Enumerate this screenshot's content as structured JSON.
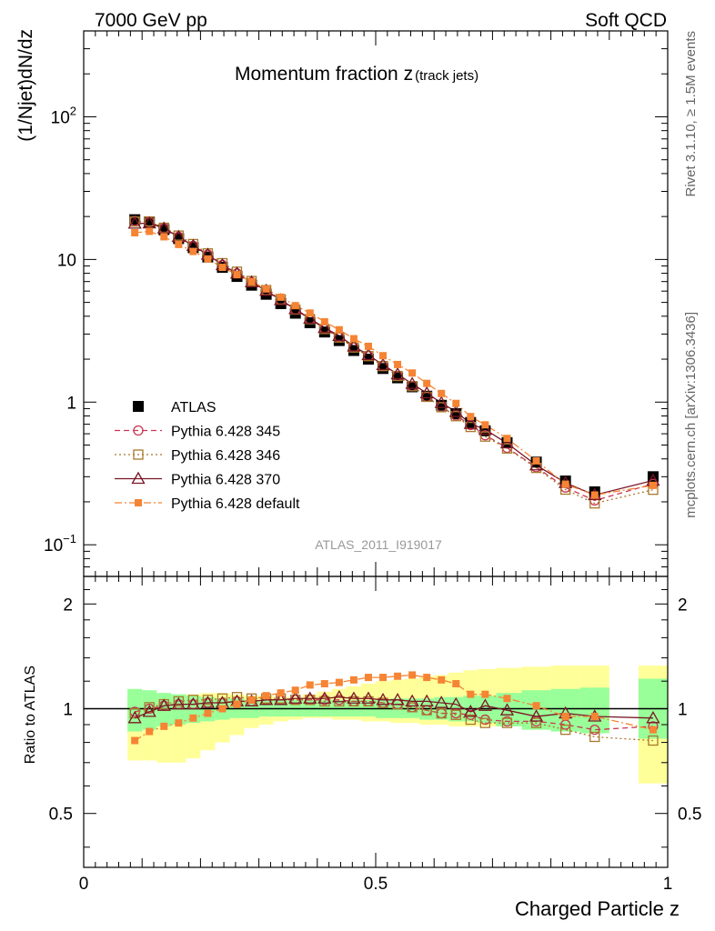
{
  "header": {
    "left": "7000 GeV pp",
    "right": "Soft QCD"
  },
  "side_labels": {
    "rivet": "Rivet 3.1.10, ≥ 1.5M events",
    "mcplots": "mcplots.cern.ch [arXiv:1306.3436]"
  },
  "chart_data": {
    "type": "line",
    "title": "Momentum fraction z",
    "title_sub": "(track jets)",
    "watermark": "ATLAS_2011_I919017",
    "xlabel": "Charged Particle z",
    "ylabel": "(1/Njet)dN/dz",
    "ratio_ylabel": "Ratio to ATLAS",
    "xlim": [
      0,
      1
    ],
    "ylim": [
      0.06,
      400
    ],
    "ratio_ylim": [
      0.35,
      2.4
    ],
    "yscale": "log",
    "x_ticks": [
      "0",
      "0.5",
      "1"
    ],
    "y_ticks_main": [
      {
        "mant": "10",
        "exp": "2"
      },
      {
        "mant": "10",
        "exp": ""
      },
      {
        "mant": "1",
        "exp": ""
      },
      {
        "mant": "10",
        "exp": "−1"
      }
    ],
    "ratio_ticks": [
      "2",
      "1",
      "0.5"
    ],
    "x": [
      0.0875,
      0.1125,
      0.1375,
      0.1625,
      0.1875,
      0.2125,
      0.2375,
      0.2625,
      0.2875,
      0.3125,
      0.3375,
      0.3625,
      0.3875,
      0.4125,
      0.4375,
      0.4625,
      0.4875,
      0.5125,
      0.5375,
      0.5625,
      0.5875,
      0.6125,
      0.6375,
      0.6625,
      0.6875,
      0.725,
      0.775,
      0.825,
      0.875,
      0.975
    ],
    "data": {
      "name": "ATLAS",
      "values": [
        19.0,
        18.3,
        16.2,
        14.0,
        12.1,
        10.4,
        8.8,
        7.6,
        6.6,
        5.7,
        4.9,
        4.2,
        3.6,
        3.1,
        2.7,
        2.3,
        2.0,
        1.72,
        1.48,
        1.28,
        1.1,
        0.95,
        0.83,
        0.72,
        0.63,
        0.52,
        0.38,
        0.28,
        0.235,
        0.3
      ],
      "band_inner": [
        [
          0.86,
          1.14
        ],
        [
          0.87,
          1.13
        ],
        [
          0.89,
          1.11
        ],
        [
          0.9,
          1.1
        ],
        [
          0.91,
          1.09
        ],
        [
          0.92,
          1.08
        ],
        [
          0.93,
          1.07
        ],
        [
          0.94,
          1.07
        ],
        [
          0.94,
          1.06
        ],
        [
          0.95,
          1.06
        ],
        [
          0.95,
          1.06
        ],
        [
          0.95,
          1.06
        ],
        [
          0.95,
          1.06
        ],
        [
          0.95,
          1.06
        ],
        [
          0.95,
          1.06
        ],
        [
          0.95,
          1.06
        ],
        [
          0.95,
          1.06
        ],
        [
          0.94,
          1.06
        ],
        [
          0.94,
          1.07
        ],
        [
          0.94,
          1.07
        ],
        [
          0.93,
          1.07
        ],
        [
          0.93,
          1.08
        ],
        [
          0.92,
          1.08
        ],
        [
          0.92,
          1.09
        ],
        [
          0.91,
          1.09
        ],
        [
          0.89,
          1.11
        ],
        [
          0.87,
          1.13
        ],
        [
          0.86,
          1.14
        ],
        [
          0.85,
          1.15
        ],
        [
          0.82,
          1.22
        ]
      ],
      "band_outer": [
        [
          0.71,
          1.07
        ],
        [
          0.71,
          1.08
        ],
        [
          0.7,
          1.08
        ],
        [
          0.7,
          1.09
        ],
        [
          0.72,
          1.1
        ],
        [
          0.76,
          1.11
        ],
        [
          0.8,
          1.11
        ],
        [
          0.84,
          1.1
        ],
        [
          0.88,
          1.09
        ],
        [
          0.9,
          1.09
        ],
        [
          0.92,
          1.08
        ],
        [
          0.93,
          1.08
        ],
        [
          0.94,
          1.1
        ],
        [
          0.94,
          1.12
        ],
        [
          0.93,
          1.14
        ],
        [
          0.93,
          1.16
        ],
        [
          0.92,
          1.18
        ],
        [
          0.92,
          1.2
        ],
        [
          0.91,
          1.21
        ],
        [
          0.91,
          1.22
        ],
        [
          0.9,
          1.24
        ],
        [
          0.9,
          1.25
        ],
        [
          0.89,
          1.27
        ],
        [
          0.89,
          1.29
        ],
        [
          0.89,
          1.3
        ],
        [
          0.89,
          1.31
        ],
        [
          0.89,
          1.32
        ],
        [
          0.89,
          1.33
        ],
        [
          0.89,
          1.33
        ],
        [
          0.61,
          1.33
        ]
      ]
    },
    "series": [
      {
        "name": "Pythia 6.428 345",
        "color": "#c83752",
        "dash": "6,4",
        "marker": "circle",
        "ratio": [
          0.98,
          1.0,
          1.02,
          1.03,
          1.03,
          1.04,
          1.04,
          1.05,
          1.05,
          1.06,
          1.06,
          1.06,
          1.06,
          1.06,
          1.06,
          1.05,
          1.05,
          1.04,
          1.03,
          1.01,
          0.99,
          0.97,
          0.97,
          0.96,
          0.93,
          0.92,
          0.92,
          0.9,
          0.87,
          0.89
        ]
      },
      {
        "name": "Pythia 6.428 346",
        "color": "#a8782c",
        "dash": "2,3",
        "marker": "square",
        "ratio": [
          0.97,
          1.01,
          1.03,
          1.05,
          1.06,
          1.06,
          1.07,
          1.08,
          1.07,
          1.07,
          1.07,
          1.06,
          1.06,
          1.05,
          1.05,
          1.05,
          1.05,
          1.04,
          1.03,
          1.01,
          0.99,
          0.97,
          0.96,
          0.93,
          0.91,
          0.91,
          0.91,
          0.87,
          0.83,
          0.81
        ]
      },
      {
        "name": "Pythia 6.428 370",
        "color": "#7a1625",
        "dash": "",
        "marker": "triangle",
        "ratio": [
          0.94,
          0.98,
          1.02,
          1.03,
          1.03,
          1.04,
          1.04,
          1.05,
          1.05,
          1.06,
          1.06,
          1.07,
          1.07,
          1.07,
          1.08,
          1.07,
          1.07,
          1.06,
          1.06,
          1.05,
          1.05,
          1.04,
          1.03,
          0.98,
          1.02,
          0.99,
          0.95,
          0.97,
          0.95,
          0.94
        ]
      },
      {
        "name": "Pythia 6.428 default",
        "color": "#f58434",
        "dash": "8,3,2,3",
        "marker": "filled-square",
        "ratio": [
          0.81,
          0.86,
          0.89,
          0.91,
          0.94,
          0.97,
          1.0,
          1.03,
          1.06,
          1.09,
          1.11,
          1.13,
          1.17,
          1.18,
          1.19,
          1.21,
          1.23,
          1.23,
          1.24,
          1.25,
          1.23,
          1.21,
          1.18,
          1.1,
          1.1,
          1.07,
          1.02,
          0.95,
          0.95,
          0.87
        ]
      }
    ]
  }
}
